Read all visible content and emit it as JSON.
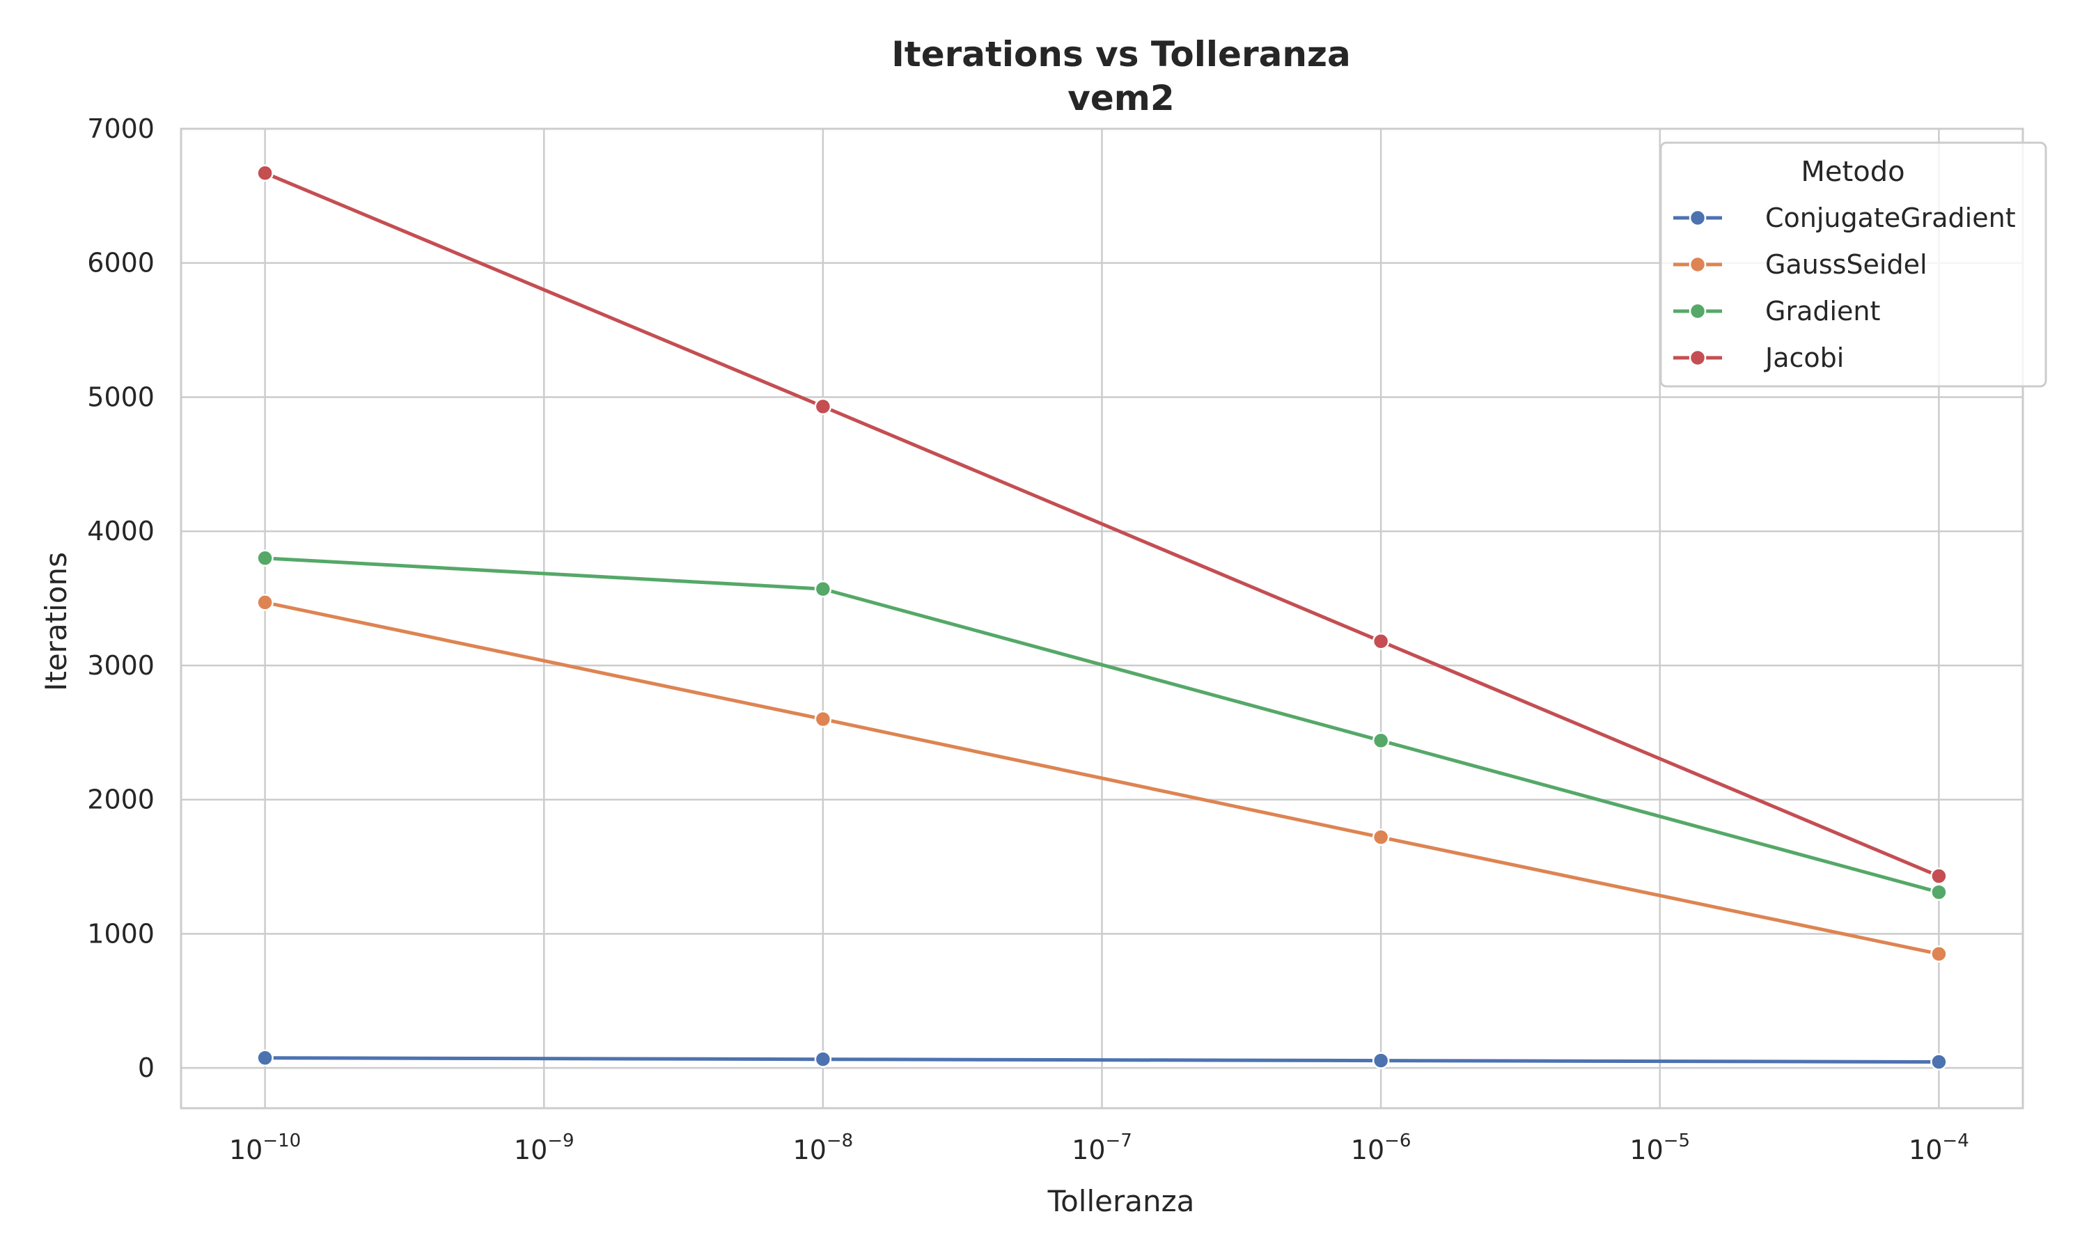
{
  "chart_data": {
    "type": "line",
    "title": "Iterations vs Tolleranza",
    "subtitle": "vem2",
    "xlabel": "Tolleranza",
    "ylabel": "Iterations",
    "xscale": "log",
    "xlim": [
      5e-11,
      0.0002
    ],
    "ylim": [
      -300,
      7000
    ],
    "x_ticks": [
      {
        "value": 1e-10,
        "base": "10",
        "exp": "−10"
      },
      {
        "value": 1e-09,
        "base": "10",
        "exp": "−9"
      },
      {
        "value": 1e-08,
        "base": "10",
        "exp": "−8"
      },
      {
        "value": 1e-07,
        "base": "10",
        "exp": "−7"
      },
      {
        "value": 1e-06,
        "base": "10",
        "exp": "−6"
      },
      {
        "value": 1e-05,
        "base": "10",
        "exp": "−5"
      },
      {
        "value": 0.0001,
        "base": "10",
        "exp": "−4"
      }
    ],
    "y_ticks": [
      0,
      1000,
      2000,
      3000,
      4000,
      5000,
      6000,
      7000
    ],
    "grid": true,
    "legend": {
      "title": "Metodo",
      "position": "top-right"
    },
    "x": [
      1e-10,
      1e-08,
      1e-06,
      0.0001
    ],
    "series": [
      {
        "name": "ConjugateGradient",
        "color": "#4c72b0",
        "values": [
          75,
          65,
          55,
          45
        ]
      },
      {
        "name": "GaussSeidel",
        "color": "#dd8452",
        "values": [
          3470,
          2600,
          1720,
          850
        ]
      },
      {
        "name": "Gradient",
        "color": "#55a868",
        "values": [
          3800,
          3570,
          2440,
          1310
        ]
      },
      {
        "name": "Jacobi",
        "color": "#c44e52",
        "values": [
          6670,
          4930,
          3180,
          1430
        ]
      }
    ]
  }
}
